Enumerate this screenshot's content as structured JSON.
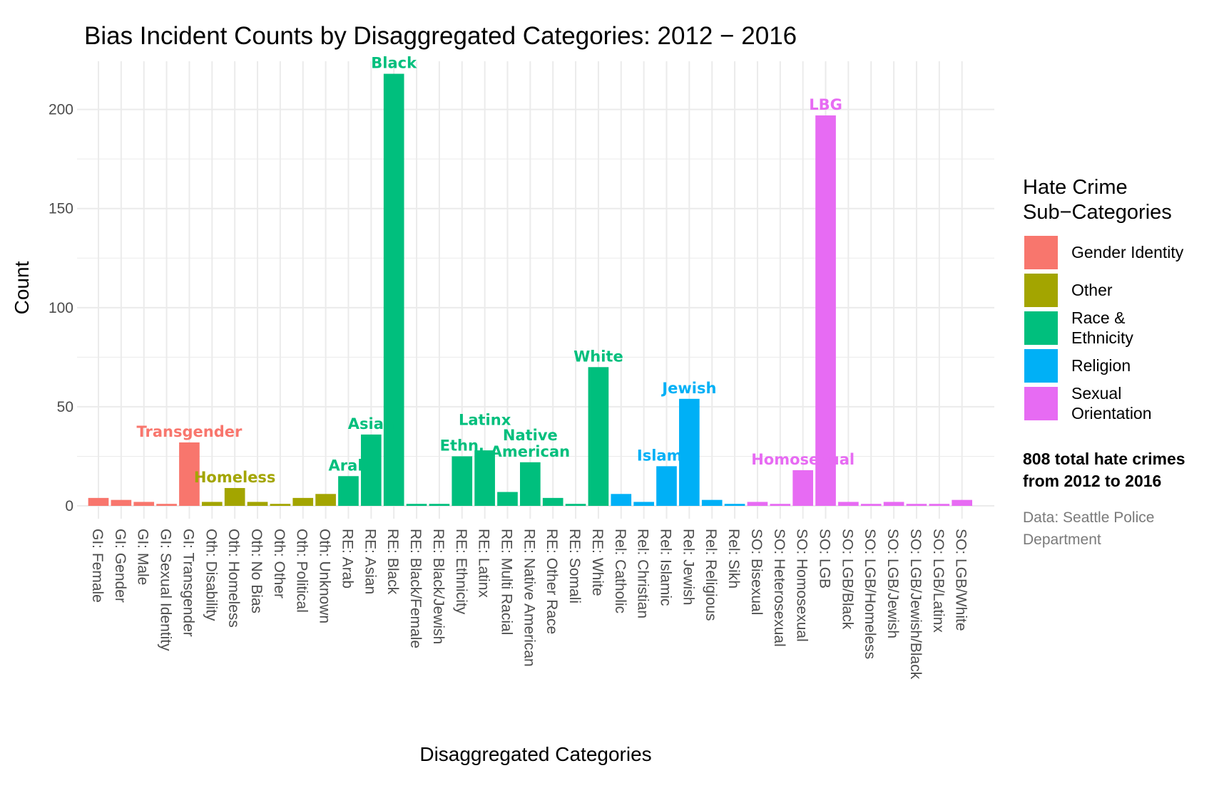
{
  "chart_data": {
    "type": "bar",
    "title": "Bias Incident Counts by Disaggregated Categories: 2012 − 2016",
    "xlabel": "Disaggregated Categories",
    "ylabel": "Count",
    "ylim": [
      0,
      220
    ],
    "yticks": [
      0,
      50,
      100,
      150,
      200
    ],
    "grid": true,
    "legend_placement": "right",
    "legend_title": [
      "Hate Crime",
      "Sub−Categories"
    ],
    "groups": [
      {
        "key": "GI",
        "name": "Gender Identity",
        "color": "#F8766D"
      },
      {
        "key": "Oth",
        "name": "Other",
        "color": "#A3A500"
      },
      {
        "key": "RE",
        "name": "Race & Ethnicity",
        "legend_lines": [
          "Race &",
          "Ethnicity"
        ],
        "color": "#00BF7D"
      },
      {
        "key": "Rel",
        "name": "Religion",
        "color": "#00B0F6"
      },
      {
        "key": "SO",
        "name": "Sexual Orientation",
        "legend_lines": [
          "Sexual",
          "Orientation"
        ],
        "color": "#E76BF3"
      }
    ],
    "bars": [
      {
        "category": "GI: Female",
        "group": "GI",
        "value": 4
      },
      {
        "category": "GI: Gender",
        "group": "GI",
        "value": 3
      },
      {
        "category": "GI: Male",
        "group": "GI",
        "value": 2
      },
      {
        "category": "GI: Sexual Identity",
        "group": "GI",
        "value": 1
      },
      {
        "category": "GI: Transgender",
        "group": "GI",
        "value": 32,
        "label": [
          "Transgender"
        ]
      },
      {
        "category": "Oth: Disability",
        "group": "Oth",
        "value": 2
      },
      {
        "category": "Oth: Homeless",
        "group": "Oth",
        "value": 9,
        "label": [
          "Homeless"
        ]
      },
      {
        "category": "Oth: No Bias",
        "group": "Oth",
        "value": 2
      },
      {
        "category": "Oth: Other",
        "group": "Oth",
        "value": 1
      },
      {
        "category": "Oth: Political",
        "group": "Oth",
        "value": 4
      },
      {
        "category": "Oth: Unknown",
        "group": "Oth",
        "value": 6
      },
      {
        "category": "RE: Arab",
        "group": "RE",
        "value": 15,
        "label": [
          "Arab"
        ]
      },
      {
        "category": "RE: Asian",
        "group": "RE",
        "value": 36,
        "label": [
          "Asian"
        ]
      },
      {
        "category": "RE: Black",
        "group": "RE",
        "value": 218,
        "label": [
          "Black"
        ]
      },
      {
        "category": "RE: Black/Female",
        "group": "RE",
        "value": 1
      },
      {
        "category": "RE: Black/Jewish",
        "group": "RE",
        "value": 1
      },
      {
        "category": "RE: Ethnicity",
        "group": "RE",
        "value": 25,
        "label": [
          "Ethn."
        ]
      },
      {
        "category": "RE: Latinx",
        "group": "RE",
        "value": 28,
        "label": [
          "Latinx"
        ],
        "label_offset_value": 10
      },
      {
        "category": "RE: Multi Racial",
        "group": "RE",
        "value": 7
      },
      {
        "category": "RE: Native American",
        "group": "RE",
        "value": 22,
        "label": [
          "Native",
          "American"
        ]
      },
      {
        "category": "RE: Other Race",
        "group": "RE",
        "value": 4
      },
      {
        "category": "RE: Somali",
        "group": "RE",
        "value": 1
      },
      {
        "category": "RE: White",
        "group": "RE",
        "value": 70,
        "label": [
          "White"
        ]
      },
      {
        "category": "Rel: Catholic",
        "group": "Rel",
        "value": 6
      },
      {
        "category": "Rel: Christian",
        "group": "Rel",
        "value": 2
      },
      {
        "category": "Rel: Islamic",
        "group": "Rel",
        "value": 20,
        "label": [
          "Islamic"
        ]
      },
      {
        "category": "Rel: Jewish",
        "group": "Rel",
        "value": 54,
        "label": [
          "Jewish"
        ]
      },
      {
        "category": "Rel: Religious",
        "group": "Rel",
        "value": 3
      },
      {
        "category": "Rel: Sikh",
        "group": "Rel",
        "value": 1
      },
      {
        "category": "SO: Bisexual",
        "group": "SO",
        "value": 2
      },
      {
        "category": "SO: Heterosexual",
        "group": "SO",
        "value": 1
      },
      {
        "category": "SO: Homosexual",
        "group": "SO",
        "value": 18,
        "label": [
          "Homosexual"
        ]
      },
      {
        "category": "SO: LGB",
        "group": "SO",
        "value": 197,
        "label": [
          "LBG"
        ]
      },
      {
        "category": "SO: LGB/Black",
        "group": "SO",
        "value": 2
      },
      {
        "category": "SO: LGB/Homeless",
        "group": "SO",
        "value": 1
      },
      {
        "category": "SO: LGB/Jewish",
        "group": "SO",
        "value": 2
      },
      {
        "category": "SO: LGB/Jewish/Black",
        "group": "SO",
        "value": 1
      },
      {
        "category": "SO: LGB/Latinx",
        "group": "SO",
        "value": 1
      },
      {
        "category": "SO: LGB/White",
        "group": "SO",
        "value": 3
      }
    ],
    "note": [
      "808 total hate crimes",
      "from 2012 to 2016"
    ],
    "caption": [
      "Data: Seattle Police",
      "Department"
    ]
  }
}
